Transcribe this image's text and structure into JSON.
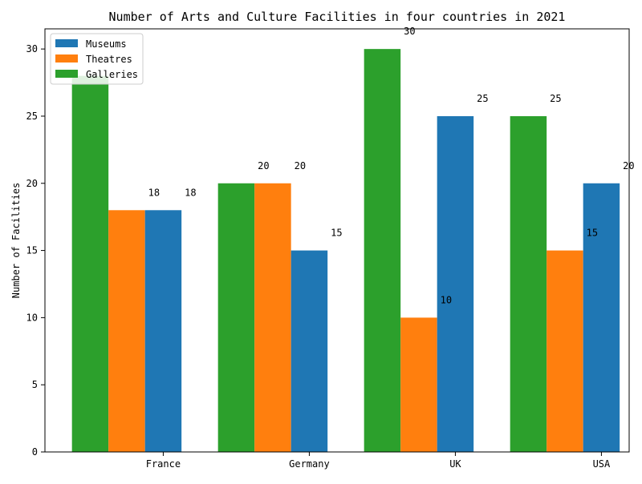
{
  "chart_data": {
    "type": "bar",
    "title": "Number of Arts and Culture Facilities in four countries in 2021",
    "xlabel": "",
    "ylabel": "Number of Facilities",
    "categories": [
      "France",
      "Germany",
      "UK",
      "USA"
    ],
    "series": [
      {
        "name": "Museums",
        "values": [
          18,
          15,
          25,
          20
        ],
        "color": "#1f77b4"
      },
      {
        "name": "Theatres",
        "values": [
          18,
          20,
          10,
          15
        ],
        "color": "#ff7f0e"
      },
      {
        "name": "Galleries",
        "values": [
          28,
          20,
          30,
          25
        ],
        "color": "#2ca02c"
      }
    ],
    "bar_order": [
      "Galleries",
      "Theatres",
      "Museums"
    ],
    "data_labels": [
      {
        "category": "France",
        "text": "18"
      },
      {
        "category": "France",
        "text": "18"
      },
      {
        "category": "Germany",
        "text": "20"
      },
      {
        "category": "Germany",
        "text": "20"
      },
      {
        "category": "Germany",
        "text": "15"
      },
      {
        "category": "UK",
        "text": "30"
      },
      {
        "category": "UK",
        "text": "10"
      },
      {
        "category": "UK",
        "text": "25"
      },
      {
        "category": "USA",
        "text": "25"
      },
      {
        "category": "USA",
        "text": "15"
      },
      {
        "category": "USA",
        "text": "20"
      }
    ],
    "ylim": [
      0,
      31.5
    ],
    "yticks": [
      0,
      5,
      10,
      15,
      20,
      25,
      30
    ],
    "grid": false,
    "legend_position": "top-left"
  }
}
